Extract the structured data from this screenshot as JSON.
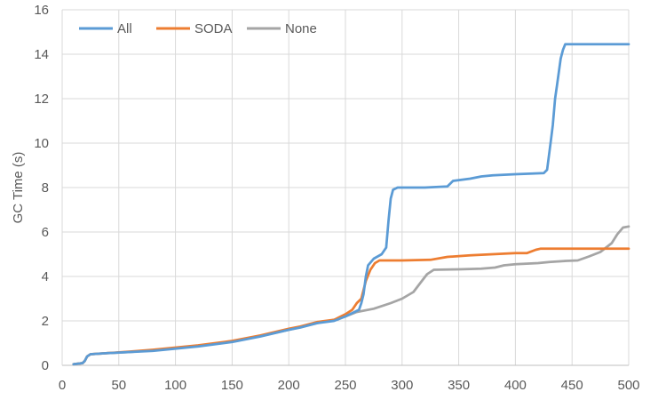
{
  "chart_data": {
    "type": "line",
    "title": "",
    "xlabel": "",
    "ylabel": "GC Time (s)",
    "xlim": [
      0,
      500
    ],
    "ylim": [
      0,
      16
    ],
    "x_ticks": [
      0,
      50,
      100,
      150,
      200,
      250,
      300,
      350,
      400,
      450,
      500
    ],
    "y_ticks": [
      0,
      2,
      4,
      6,
      8,
      10,
      12,
      14,
      16
    ],
    "grid": true,
    "legend_position": "top-left",
    "series": [
      {
        "name": "All",
        "color": "#5B9BD5",
        "points": [
          [
            10,
            0.05
          ],
          [
            18,
            0.1
          ],
          [
            20,
            0.2
          ],
          [
            22,
            0.4
          ],
          [
            25,
            0.5
          ],
          [
            40,
            0.55
          ],
          [
            60,
            0.6
          ],
          [
            80,
            0.65
          ],
          [
            100,
            0.75
          ],
          [
            120,
            0.85
          ],
          [
            150,
            1.05
          ],
          [
            175,
            1.3
          ],
          [
            200,
            1.6
          ],
          [
            210,
            1.7
          ],
          [
            225,
            1.9
          ],
          [
            240,
            2.0
          ],
          [
            250,
            2.2
          ],
          [
            262,
            2.5
          ],
          [
            264,
            2.8
          ],
          [
            266,
            3.2
          ],
          [
            268,
            4.0
          ],
          [
            270,
            4.5
          ],
          [
            275,
            4.8
          ],
          [
            282,
            5.0
          ],
          [
            286,
            5.3
          ],
          [
            288,
            6.5
          ],
          [
            290,
            7.5
          ],
          [
            292,
            7.9
          ],
          [
            296,
            8.0
          ],
          [
            320,
            8.0
          ],
          [
            340,
            8.05
          ],
          [
            345,
            8.3
          ],
          [
            360,
            8.4
          ],
          [
            370,
            8.5
          ],
          [
            380,
            8.55
          ],
          [
            400,
            8.6
          ],
          [
            410,
            8.62
          ],
          [
            425,
            8.65
          ],
          [
            428,
            8.8
          ],
          [
            431,
            10.0
          ],
          [
            433,
            10.8
          ],
          [
            435,
            12.0
          ],
          [
            437,
            12.7
          ],
          [
            440,
            13.8
          ],
          [
            442,
            14.2
          ],
          [
            444,
            14.45
          ],
          [
            470,
            14.45
          ],
          [
            500,
            14.45
          ]
        ]
      },
      {
        "name": "SODA",
        "color": "#ED7D31",
        "points": [
          [
            10,
            0.05
          ],
          [
            18,
            0.1
          ],
          [
            20,
            0.2
          ],
          [
            22,
            0.4
          ],
          [
            25,
            0.5
          ],
          [
            40,
            0.55
          ],
          [
            60,
            0.62
          ],
          [
            80,
            0.7
          ],
          [
            100,
            0.8
          ],
          [
            120,
            0.9
          ],
          [
            150,
            1.1
          ],
          [
            175,
            1.35
          ],
          [
            200,
            1.65
          ],
          [
            210,
            1.75
          ],
          [
            225,
            1.95
          ],
          [
            240,
            2.05
          ],
          [
            250,
            2.3
          ],
          [
            256,
            2.5
          ],
          [
            260,
            2.8
          ],
          [
            264,
            3.0
          ],
          [
            268,
            3.8
          ],
          [
            272,
            4.3
          ],
          [
            276,
            4.6
          ],
          [
            280,
            4.72
          ],
          [
            300,
            4.72
          ],
          [
            325,
            4.75
          ],
          [
            340,
            4.88
          ],
          [
            360,
            4.95
          ],
          [
            380,
            5.0
          ],
          [
            400,
            5.05
          ],
          [
            410,
            5.05
          ],
          [
            418,
            5.2
          ],
          [
            422,
            5.25
          ],
          [
            450,
            5.25
          ],
          [
            480,
            5.25
          ],
          [
            500,
            5.25
          ]
        ]
      },
      {
        "name": "None",
        "color": "#A5A5A5",
        "points": [
          [
            10,
            0.05
          ],
          [
            18,
            0.1
          ],
          [
            20,
            0.2
          ],
          [
            22,
            0.4
          ],
          [
            25,
            0.5
          ],
          [
            40,
            0.55
          ],
          [
            60,
            0.6
          ],
          [
            80,
            0.68
          ],
          [
            100,
            0.78
          ],
          [
            120,
            0.88
          ],
          [
            150,
            1.08
          ],
          [
            175,
            1.32
          ],
          [
            200,
            1.6
          ],
          [
            210,
            1.72
          ],
          [
            225,
            1.9
          ],
          [
            240,
            2.05
          ],
          [
            250,
            2.2
          ],
          [
            260,
            2.4
          ],
          [
            275,
            2.55
          ],
          [
            290,
            2.8
          ],
          [
            300,
            3.0
          ],
          [
            310,
            3.3
          ],
          [
            316,
            3.7
          ],
          [
            322,
            4.1
          ],
          [
            328,
            4.3
          ],
          [
            350,
            4.32
          ],
          [
            370,
            4.35
          ],
          [
            382,
            4.4
          ],
          [
            390,
            4.5
          ],
          [
            400,
            4.55
          ],
          [
            420,
            4.6
          ],
          [
            430,
            4.65
          ],
          [
            445,
            4.7
          ],
          [
            455,
            4.72
          ],
          [
            465,
            4.9
          ],
          [
            475,
            5.1
          ],
          [
            485,
            5.5
          ],
          [
            490,
            5.9
          ],
          [
            495,
            6.2
          ],
          [
            500,
            6.25
          ]
        ]
      }
    ]
  }
}
